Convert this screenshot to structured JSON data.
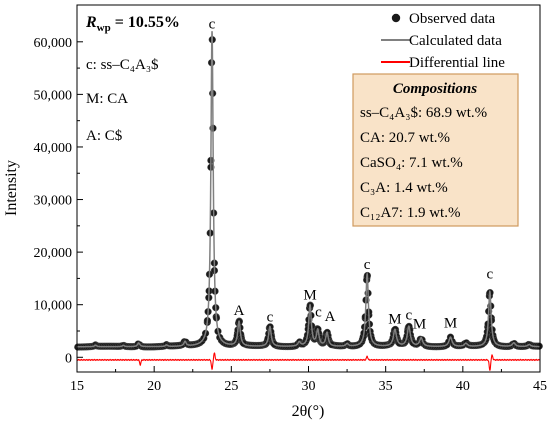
{
  "chart_data": {
    "type": "line",
    "xlabel": "2θ(°)",
    "ylabel": "Intensity",
    "xlim": [
      15,
      45
    ],
    "ylim": [
      -2800,
      67000
    ],
    "x_ticks": [
      "15",
      "20",
      "25",
      "30",
      "35",
      "40",
      "45"
    ],
    "y_ticks": [
      "0",
      "10,000",
      "20,000",
      "30,000",
      "40,000",
      "50,000",
      "60,000"
    ],
    "legend": {
      "position": "top-right",
      "observed": "Observed data",
      "calculated": "Calculated data",
      "differential": "Differential line"
    },
    "rwp": {
      "label": "R",
      "subscript": "wp",
      "value": "= 10.55%"
    },
    "phase_key": {
      "c": "c: ss–C₄A₃$",
      "m": "M: CA",
      "a": "A: C$"
    },
    "compositions": {
      "title": "Compositions",
      "items": [
        "ss–C₄A₃$: 68.9 wt.%",
        "CA: 20.7 wt.%",
        "CaSO₄: 7.1 wt.%",
        "C₃A: 1.4 wt.%",
        "C₁₂A7: 1.9 wt.%"
      ]
    },
    "background": 2000,
    "peaks": [
      {
        "pos": 16.2,
        "h": 300,
        "w": 0.08
      },
      {
        "pos": 18.0,
        "h": 250,
        "w": 0.08
      },
      {
        "pos": 19.0,
        "h": 700,
        "w": 0.09
      },
      {
        "pos": 20.8,
        "h": 300,
        "w": 0.08
      },
      {
        "pos": 22.0,
        "h": 900,
        "w": 0.09
      },
      {
        "pos": 23.75,
        "h": 60000,
        "w": 0.09
      },
      {
        "pos": 25.5,
        "h": 4700,
        "w": 0.1
      },
      {
        "pos": 27.5,
        "h": 3800,
        "w": 0.1
      },
      {
        "pos": 29.4,
        "h": 800,
        "w": 0.1
      },
      {
        "pos": 30.1,
        "h": 7800,
        "w": 0.1
      },
      {
        "pos": 30.6,
        "h": 3000,
        "w": 0.1
      },
      {
        "pos": 31.2,
        "h": 2600,
        "w": 0.1
      },
      {
        "pos": 32.5,
        "h": 500,
        "w": 0.1
      },
      {
        "pos": 33.8,
        "h": 13800,
        "w": 0.1
      },
      {
        "pos": 35.6,
        "h": 3200,
        "w": 0.12
      },
      {
        "pos": 36.5,
        "h": 3800,
        "w": 0.12
      },
      {
        "pos": 37.3,
        "h": 1600,
        "w": 0.12
      },
      {
        "pos": 39.2,
        "h": 1800,
        "w": 0.12
      },
      {
        "pos": 40.2,
        "h": 600,
        "w": 0.12
      },
      {
        "pos": 41.75,
        "h": 10500,
        "w": 0.1
      },
      {
        "pos": 43.3,
        "h": 700,
        "w": 0.12
      },
      {
        "pos": 44.3,
        "h": 400,
        "w": 0.12
      }
    ],
    "peak_labels": [
      {
        "text": "c",
        "x": 23.75,
        "y": 62500
      },
      {
        "text": "A",
        "x": 25.5,
        "y": 8000
      },
      {
        "text": "c",
        "x": 27.5,
        "y": 6800
      },
      {
        "text": "M",
        "x": 30.1,
        "y": 11000
      },
      {
        "text": "c",
        "x": 30.65,
        "y": 7800
      },
      {
        "text": "A",
        "x": 31.4,
        "y": 6900
      },
      {
        "text": "c",
        "x": 33.8,
        "y": 16800
      },
      {
        "text": "M",
        "x": 35.6,
        "y": 6400
      },
      {
        "text": "c",
        "x": 36.5,
        "y": 7200
      },
      {
        "text": "M",
        "x": 37.2,
        "y": 5500
      },
      {
        "text": "M",
        "x": 39.2,
        "y": 5700
      },
      {
        "text": "c",
        "x": 41.75,
        "y": 15000
      }
    ],
    "differential_offset": -500,
    "diff_spikes": [
      {
        "pos": 19.1,
        "v": -900
      },
      {
        "pos": 23.75,
        "v": -1800
      },
      {
        "pos": 23.9,
        "v": 1300
      },
      {
        "pos": 33.8,
        "v": 700
      },
      {
        "pos": 41.75,
        "v": -2000
      },
      {
        "pos": 41.9,
        "v": 900
      }
    ],
    "colors": {
      "observed": "#1a1a1a",
      "calculated": "#808080",
      "differential": "#ff0000",
      "compositions_bg": "#f9e3c8",
      "compositions_border": "#cf9a5e"
    }
  }
}
